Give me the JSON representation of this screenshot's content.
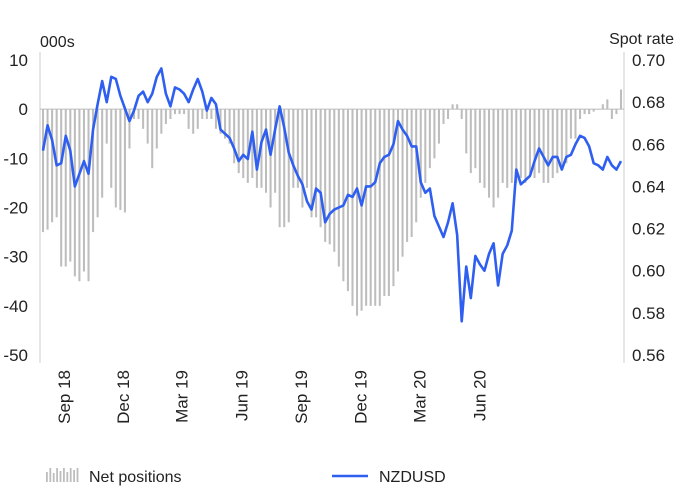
{
  "chart_data": {
    "type": "bar+line",
    "left_axis_unit": "000s",
    "right_axis_unit": "Spot rate",
    "left_ticks": [
      10,
      0,
      -10,
      -20,
      -30,
      -40,
      -50
    ],
    "right_ticks": [
      "0.70",
      "0.68",
      "0.66",
      "0.64",
      "0.62",
      "0.60",
      "0.58",
      "0.56"
    ],
    "left_ylim": [
      -50,
      10
    ],
    "right_ylim": [
      0.56,
      0.7
    ],
    "x_labels": [
      "Sep 18",
      "Dec 18",
      "Mar 19",
      "Jun 19",
      "Sep 19",
      "Dec 19",
      "Mar 20",
      "Jun 20"
    ],
    "grid": false,
    "colors": {
      "bars": "#bdbdbd",
      "line": "#2f5ff0",
      "axis": "#cccccc"
    },
    "series": [
      {
        "name": "Net positions",
        "type": "bar",
        "values": [
          -25,
          -24.5,
          -23,
          -22,
          -32,
          -32,
          -31,
          -34,
          -35,
          -33,
          -35,
          -25,
          -22,
          -18,
          -7,
          -16,
          -20,
          -20.5,
          -21,
          -8,
          -2,
          -2,
          -4,
          -7,
          -12,
          -8,
          -5,
          -3,
          -2,
          -1,
          -1,
          -1,
          -4,
          -5,
          -4,
          -2,
          -2,
          -2,
          -4,
          -5,
          -6,
          -7,
          -11,
          -13,
          -14,
          -15,
          -14,
          -16,
          -16,
          -17,
          -20,
          -17,
          -24,
          -24,
          -23,
          -16,
          -16,
          -20,
          -16,
          -22,
          -22,
          -24,
          -27,
          -27.5,
          -29,
          -32,
          -35,
          -37,
          -40,
          -42,
          -41,
          -40,
          -40,
          -40,
          -40,
          -38,
          -38,
          -36,
          -33,
          -30,
          -27,
          -26,
          -23,
          -18,
          -15,
          -12,
          -10,
          -7,
          -3,
          -2,
          1,
          1,
          -2,
          -9,
          -13,
          -12,
          -15,
          -16,
          -18,
          -20,
          -18,
          -15,
          -16,
          -15,
          -15,
          -14,
          -15,
          -13,
          -14,
          -13,
          -15,
          -15,
          -14,
          -13,
          -12,
          -11,
          -6,
          -6,
          -2,
          -1,
          -1,
          -0.5,
          0,
          1,
          2,
          -2,
          -1,
          4
        ],
        "first_week": "2018-07-31"
      },
      {
        "name": "NZDUSD",
        "type": "line",
        "values": [
          0.657,
          0.669,
          0.662,
          0.65,
          0.651,
          0.664,
          0.657,
          0.64,
          0.646,
          0.652,
          0.646,
          0.667,
          0.679,
          0.69,
          0.68,
          0.692,
          0.691,
          0.683,
          0.677,
          0.671,
          0.676,
          0.683,
          0.685,
          0.68,
          0.684,
          0.692,
          0.696,
          0.684,
          0.678,
          0.687,
          0.686,
          0.684,
          0.68,
          0.686,
          0.691,
          0.685,
          0.676,
          0.682,
          0.679,
          0.667,
          0.665,
          0.663,
          0.658,
          0.652,
          0.655,
          0.653,
          0.666,
          0.648,
          0.661,
          0.667,
          0.655,
          0.667,
          0.678,
          0.668,
          0.656,
          0.65,
          0.645,
          0.641,
          0.633,
          0.629,
          0.639,
          0.637,
          0.623,
          0.627,
          0.629,
          0.63,
          0.631,
          0.636,
          0.635,
          0.639,
          0.631,
          0.64,
          0.64,
          0.642,
          0.651,
          0.654,
          0.655,
          0.66,
          0.671,
          0.667,
          0.664,
          0.659,
          0.659,
          0.642,
          0.637,
          0.639,
          0.626,
          0.621,
          0.616,
          0.623,
          0.632,
          0.617,
          0.576,
          0.602,
          0.587,
          0.607,
          0.603,
          0.6,
          0.608,
          0.613,
          0.593,
          0.608,
          0.612,
          0.619,
          0.648,
          0.641,
          0.643,
          0.645,
          0.652,
          0.658,
          0.654,
          0.65,
          0.654,
          0.654,
          0.648,
          0.654,
          0.655,
          0.66,
          0.664,
          0.663,
          0.659,
          0.651,
          0.65,
          0.648,
          0.654,
          0.65,
          0.648,
          0.652
        ]
      }
    ],
    "legend": [
      {
        "label": "Net positions",
        "type": "bar"
      },
      {
        "label": "NZDUSD",
        "type": "line"
      }
    ]
  }
}
